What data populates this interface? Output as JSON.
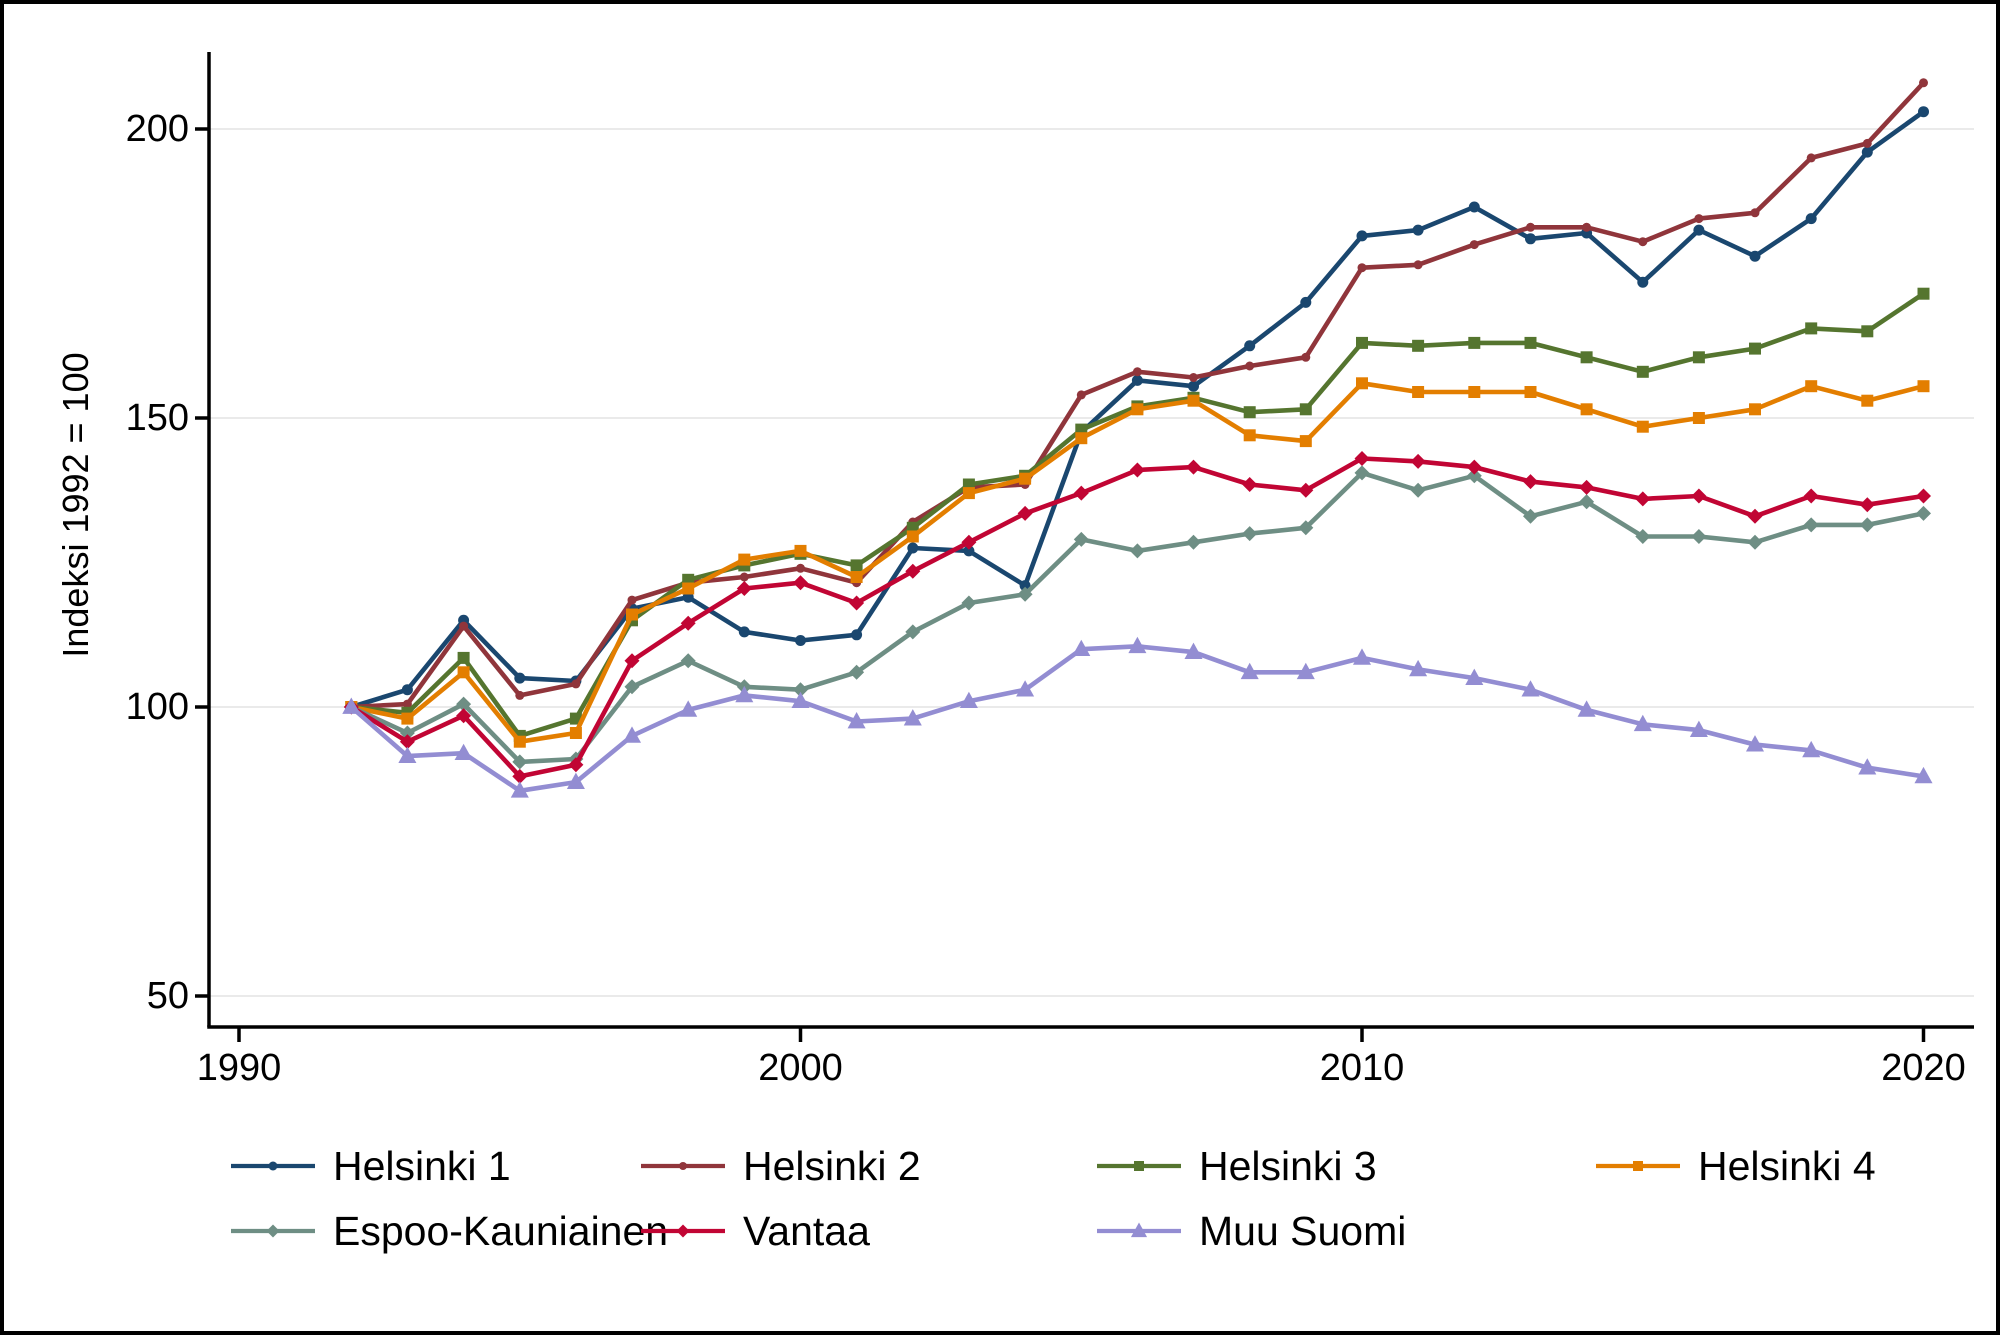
{
  "figure": {
    "background": "#ffffff",
    "border_color": "#000000"
  },
  "chart_data": {
    "type": "line",
    "title": "",
    "xlabel": "",
    "ylabel": "Indeksi 1992 = 100",
    "x_ticks": [
      "1990",
      "2000",
      "2010",
      "2020"
    ],
    "y_ticks": [
      "50",
      "100",
      "150",
      "200"
    ],
    "xlim": [
      1989.5,
      2020.9
    ],
    "ylim": [
      44.5,
      213
    ],
    "grid": "horizontal-light",
    "gridline_color": "#e4e4e4",
    "legend_position": "bottom",
    "years": [
      1992,
      1993,
      1994,
      1995,
      1996,
      1997,
      1998,
      1999,
      2000,
      2001,
      2002,
      2003,
      2004,
      2005,
      2006,
      2007,
      2008,
      2009,
      2010,
      2011,
      2012,
      2013,
      2014,
      2015,
      2016,
      2017,
      2018,
      2019,
      2020
    ],
    "series": [
      {
        "name": "Helsinki 1",
        "color": "#1A476F",
        "marker": "circle",
        "values": [
          100,
          103,
          115,
          105,
          104.5,
          117,
          119,
          113,
          111.5,
          112.5,
          127.5,
          127,
          121,
          147.5,
          156.5,
          155.5,
          162.5,
          170,
          181.5,
          182.5,
          186.5,
          181,
          182,
          173.5,
          182.5,
          178,
          184.5,
          196,
          203
        ]
      },
      {
        "name": "Helsinki 2",
        "color": "#90353B",
        "marker": "circle",
        "values": [
          100,
          100.5,
          114,
          102,
          104,
          118.5,
          121.5,
          122.5,
          124,
          121.5,
          132,
          138,
          138.5,
          154,
          158,
          157,
          159,
          160.5,
          176,
          176.5,
          180,
          183,
          183,
          180.5,
          184.5,
          185.5,
          195,
          197.5,
          208
        ]
      },
      {
        "name": "Helsinki 3",
        "color": "#55752F",
        "marker": "square",
        "values": [
          100,
          99,
          108.5,
          95,
          98,
          115,
          122,
          124.5,
          126.5,
          124.5,
          131,
          138.5,
          140,
          148,
          152,
          153.5,
          151,
          151.5,
          163,
          162.5,
          163,
          163,
          160.5,
          158,
          160.5,
          162,
          165.5,
          165,
          171.5
        ]
      },
      {
        "name": "Helsinki 4",
        "color": "#E37E00",
        "marker": "square",
        "values": [
          100,
          98,
          106,
          94,
          95.5,
          116,
          120.5,
          125.5,
          127,
          122.5,
          129.5,
          137,
          139.5,
          146.5,
          151.5,
          153,
          147,
          146,
          156,
          154.5,
          154.5,
          154.5,
          151.5,
          148.5,
          150,
          151.5,
          155.5,
          153,
          155.5
        ]
      },
      {
        "name": "Espoo-Kauniainen",
        "color": "#6E8E84",
        "marker": "diamond",
        "values": [
          100,
          95.5,
          100.5,
          90.5,
          91,
          103.5,
          108,
          103.5,
          103,
          106,
          113,
          118,
          119.5,
          129,
          127,
          128.5,
          130,
          131,
          140.5,
          137.5,
          140,
          133,
          135.5,
          129.5,
          129.5,
          128.5,
          131.5,
          131.5,
          133.5
        ]
      },
      {
        "name": "Vantaa",
        "color": "#C10534",
        "marker": "diamond",
        "values": [
          100,
          94,
          98.5,
          88,
          90,
          108,
          114.5,
          120.5,
          121.5,
          118,
          123.5,
          128.5,
          133.5,
          137,
          141,
          141.5,
          138.5,
          137.5,
          143,
          142.5,
          141.5,
          139,
          138,
          136,
          136.5,
          133,
          136.5,
          135,
          136.5
        ]
      },
      {
        "name": "Muu Suomi",
        "color": "#938DD2",
        "marker": "triangle",
        "values": [
          100,
          91.5,
          92,
          85.5,
          87,
          95,
          99.5,
          102,
          101,
          97.5,
          98,
          101,
          103,
          110,
          110.5,
          109.5,
          106,
          106,
          108.5,
          106.5,
          105,
          103,
          99.5,
          97,
          96,
          93.5,
          92.5,
          89.5,
          88
        ]
      }
    ]
  }
}
